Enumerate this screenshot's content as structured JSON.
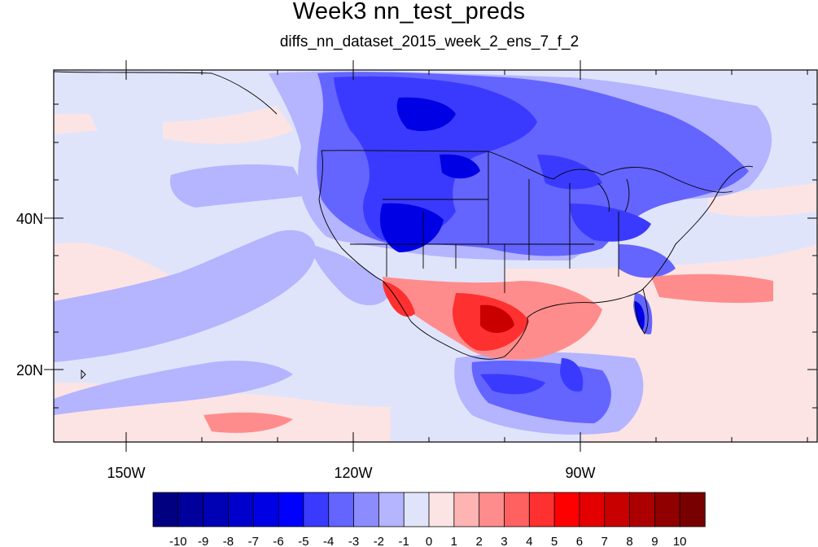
{
  "title": "Week3 nn_test_preds",
  "subtitle": "diffs_nn_dataset_2015_week_2_ens_7_f_2",
  "axes": {
    "lon_labels": [
      "150W",
      "120W",
      "90W"
    ],
    "lat_labels": [
      "40N",
      "20N"
    ],
    "lon_range": [
      -160,
      -62
    ],
    "lat_range": [
      11,
      60
    ]
  },
  "colorbar": {
    "levels": [
      "-10",
      "-9",
      "-8",
      "-7",
      "-6",
      "-5",
      "-4",
      "-3",
      "-2",
      "-1",
      "0",
      "1",
      "2",
      "3",
      "4",
      "5",
      "6",
      "7",
      "8",
      "9",
      "10"
    ],
    "colors": [
      "#000080",
      "#00009c",
      "#0000b4",
      "#0000cc",
      "#0000e4",
      "#0000ff",
      "#3a3aff",
      "#6464ff",
      "#8c8cff",
      "#b4b4ff",
      "#e0e4fa",
      "#fce4e4",
      "#ffb4b4",
      "#ff8c8c",
      "#ff6060",
      "#ff3030",
      "#ff0000",
      "#e40000",
      "#c80000",
      "#ac0000",
      "#900000",
      "#780000"
    ]
  },
  "field_description_colors": {
    "background": "#e0e4fa",
    "coastline": "#000000"
  }
}
